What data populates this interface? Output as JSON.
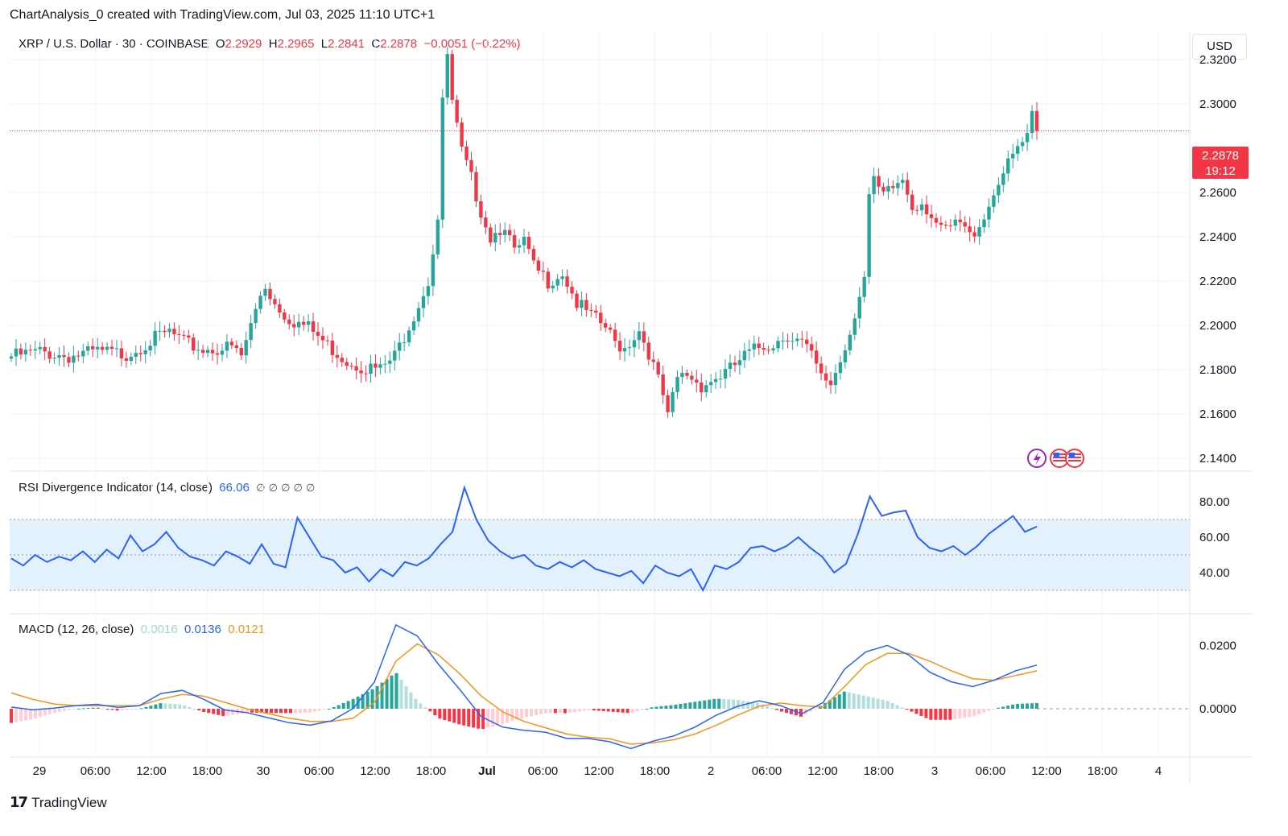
{
  "header": {
    "caption": "ChartAnalysis_0 created with TradingView.com, Jul 03, 2025 11:10 UTC+1",
    "symbol": "XRP / U.S. Dollar · 30 · COINBASE",
    "open_label": "O",
    "open": "2.2929",
    "high_label": "H",
    "high": "2.2965",
    "low_label": "L",
    "low": "2.2841",
    "close_label": "C",
    "close": "2.2878",
    "change": "−0.0051 (−0.22%)",
    "currency": "USD"
  },
  "price_tag": {
    "price": "2.2878",
    "countdown": "19:12"
  },
  "indicators": {
    "rsi": {
      "label": "RSI Divergence Indicator (14, close)",
      "value": "66.06",
      "extras": "∅ ∅ ∅ ∅ ∅"
    },
    "macd": {
      "label": "MACD (12, 26, close)",
      "hist": "0.0016",
      "macd": "0.0136",
      "signal": "0.0121"
    }
  },
  "branding": {
    "logo_mark": "17",
    "name": "TradingView"
  },
  "colors": {
    "up": "#26a69a",
    "down": "#f23645",
    "rsi": "#2962ff",
    "signal": "#f7931a",
    "macd": "#2962ff",
    "band": "#e3f1fd"
  },
  "chart_data": [
    {
      "type": "candlestick",
      "title": "XRP / U.S. Dollar · 30 · COINBASE",
      "x_tick_labels": [
        "29",
        "06:00",
        "12:00",
        "18:00",
        "30",
        "06:00",
        "12:00",
        "18:00",
        "Jul",
        "06:00",
        "12:00",
        "18:00",
        "2",
        "06:00",
        "12:00",
        "18:00",
        "3",
        "06:00",
        "12:00",
        "18:00",
        "4"
      ],
      "y_tick_labels": [
        "2.3200",
        "2.3000",
        "2.2600",
        "2.2400",
        "2.2200",
        "2.2000",
        "2.1800",
        "2.1600",
        "2.1400"
      ],
      "ylim": [
        2.14,
        2.32
      ],
      "last_price": 2.2878,
      "close_path": [
        [
          0,
          2.186
        ],
        [
          6,
          2.188
        ],
        [
          12,
          2.186
        ],
        [
          18,
          2.188
        ],
        [
          24,
          2.187
        ],
        [
          30,
          2.194
        ],
        [
          33,
          2.197
        ],
        [
          36,
          2.192
        ],
        [
          40,
          2.189
        ],
        [
          46,
          2.19
        ],
        [
          48,
          2.186
        ],
        [
          52,
          2.214
        ],
        [
          53,
          2.218
        ],
        [
          55,
          2.21
        ],
        [
          58,
          2.203
        ],
        [
          62,
          2.199
        ],
        [
          66,
          2.191
        ],
        [
          70,
          2.184
        ],
        [
          74,
          2.181
        ],
        [
          77,
          2.18
        ],
        [
          80,
          2.186
        ],
        [
          84,
          2.205
        ],
        [
          87,
          2.22
        ],
        [
          89,
          2.248
        ],
        [
          90,
          2.3
        ],
        [
          91,
          2.322
        ],
        [
          92,
          2.3
        ],
        [
          94,
          2.278
        ],
        [
          96,
          2.266
        ],
        [
          98,
          2.252
        ],
        [
          100,
          2.24
        ],
        [
          103,
          2.246
        ],
        [
          105,
          2.232
        ],
        [
          107,
          2.238
        ],
        [
          109,
          2.226
        ],
        [
          112,
          2.22
        ],
        [
          115,
          2.224
        ],
        [
          118,
          2.21
        ],
        [
          121,
          2.204
        ],
        [
          124,
          2.199
        ],
        [
          126,
          2.192
        ],
        [
          128,
          2.19
        ],
        [
          131,
          2.198
        ],
        [
          133,
          2.188
        ],
        [
          135,
          2.175
        ],
        [
          136,
          2.168
        ],
        [
          137,
          2.158
        ],
        [
          139,
          2.176
        ],
        [
          141,
          2.178
        ],
        [
          144,
          2.173
        ],
        [
          147,
          2.176
        ],
        [
          150,
          2.18
        ],
        [
          153,
          2.186
        ],
        [
          156,
          2.19
        ],
        [
          159,
          2.192
        ],
        [
          162,
          2.196
        ],
        [
          165,
          2.192
        ],
        [
          167,
          2.186
        ],
        [
          169,
          2.176
        ],
        [
          171,
          2.174
        ],
        [
          173,
          2.184
        ],
        [
          175,
          2.197
        ],
        [
          177,
          2.215
        ],
        [
          178,
          2.222
        ],
        [
          179,
          2.258
        ],
        [
          180,
          2.264
        ],
        [
          182,
          2.258
        ],
        [
          184,
          2.262
        ],
        [
          186,
          2.266
        ],
        [
          188,
          2.254
        ],
        [
          190,
          2.256
        ],
        [
          192,
          2.25
        ],
        [
          194,
          2.242
        ],
        [
          196,
          2.244
        ],
        [
          198,
          2.246
        ],
        [
          200,
          2.24
        ],
        [
          202,
          2.246
        ],
        [
          204,
          2.254
        ],
        [
          206,
          2.266
        ],
        [
          208,
          2.272
        ],
        [
          210,
          2.28
        ],
        [
          212,
          2.284
        ],
        [
          213,
          2.294
        ],
        [
          214,
          2.288
        ]
      ]
    },
    {
      "type": "line",
      "title": "RSI Divergence Indicator (14, close)",
      "y_tick_labels": [
        "80.00",
        "60.00",
        "40.00"
      ],
      "ylim": [
        20,
        95
      ],
      "band": [
        30,
        70
      ],
      "midline": 50,
      "series": [
        {
          "name": "RSI",
          "values": [
            48,
            44,
            50,
            46,
            49,
            47,
            52,
            46,
            53,
            48,
            61,
            52,
            56,
            63,
            54,
            49,
            47,
            44,
            52,
            49,
            45,
            56,
            45,
            43,
            71,
            60,
            49,
            47,
            40,
            43,
            35,
            42,
            38,
            46,
            44,
            48,
            56,
            63,
            88,
            70,
            58,
            52,
            48,
            50,
            44,
            42,
            46,
            43,
            47,
            42,
            40,
            38,
            41,
            34,
            44,
            40,
            38,
            42,
            30,
            44,
            42,
            46,
            54,
            55,
            52,
            55,
            60,
            54,
            49,
            40,
            45,
            62,
            83,
            72,
            74,
            75,
            60,
            54,
            52,
            55,
            50,
            55,
            62,
            67,
            72,
            63,
            66
          ]
        }
      ],
      "last_value": 66.06
    },
    {
      "type": "line",
      "title": "MACD (12, 26, close)",
      "y_tick_labels": [
        "0.0200",
        "0.0000"
      ],
      "ylim": [
        -0.014,
        0.028
      ],
      "series": [
        {
          "name": "MACD",
          "values": [
            0.0005,
            -0.0003,
            0.0002,
            0.001,
            0.0014,
            0.0004,
            0.001,
            0.0048,
            0.0058,
            0.003,
            -0.0004,
            -0.0012,
            -0.0028,
            -0.0044,
            -0.0052,
            -0.0038,
            0.0001,
            0.0085,
            0.0265,
            0.023,
            0.014,
            0.006,
            -0.0025,
            -0.0058,
            -0.0068,
            -0.0074,
            -0.0094,
            -0.0094,
            -0.0104,
            -0.0126,
            -0.0103,
            -0.0086,
            -0.0058,
            -0.002,
            0.0008,
            0.0025,
            0.001,
            -0.0016,
            0.002,
            0.0125,
            0.018,
            0.02,
            0.017,
            0.0115,
            0.0085,
            0.007,
            0.009,
            0.012,
            0.0138
          ]
        },
        {
          "name": "Signal",
          "values": [
            0.005,
            0.003,
            0.0015,
            0.001,
            0.001,
            0.001,
            0.001,
            0.003,
            0.0045,
            0.004,
            0.002,
            0.0,
            -0.0015,
            -0.003,
            -0.004,
            -0.004,
            -0.003,
            0.002,
            0.015,
            0.0205,
            0.017,
            0.011,
            0.004,
            -0.001,
            -0.004,
            -0.006,
            -0.008,
            -0.009,
            -0.0095,
            -0.0112,
            -0.0108,
            -0.0098,
            -0.008,
            -0.0052,
            -0.002,
            0.0008,
            0.0018,
            0.001,
            0.0005,
            0.007,
            0.014,
            0.0175,
            0.0175,
            0.015,
            0.012,
            0.0095,
            0.009,
            0.0105,
            0.012
          ]
        }
      ],
      "histogram": "macd_minus_signal",
      "last_values": {
        "histogram": 0.0016,
        "macd": 0.0136,
        "signal": 0.0121
      }
    }
  ]
}
